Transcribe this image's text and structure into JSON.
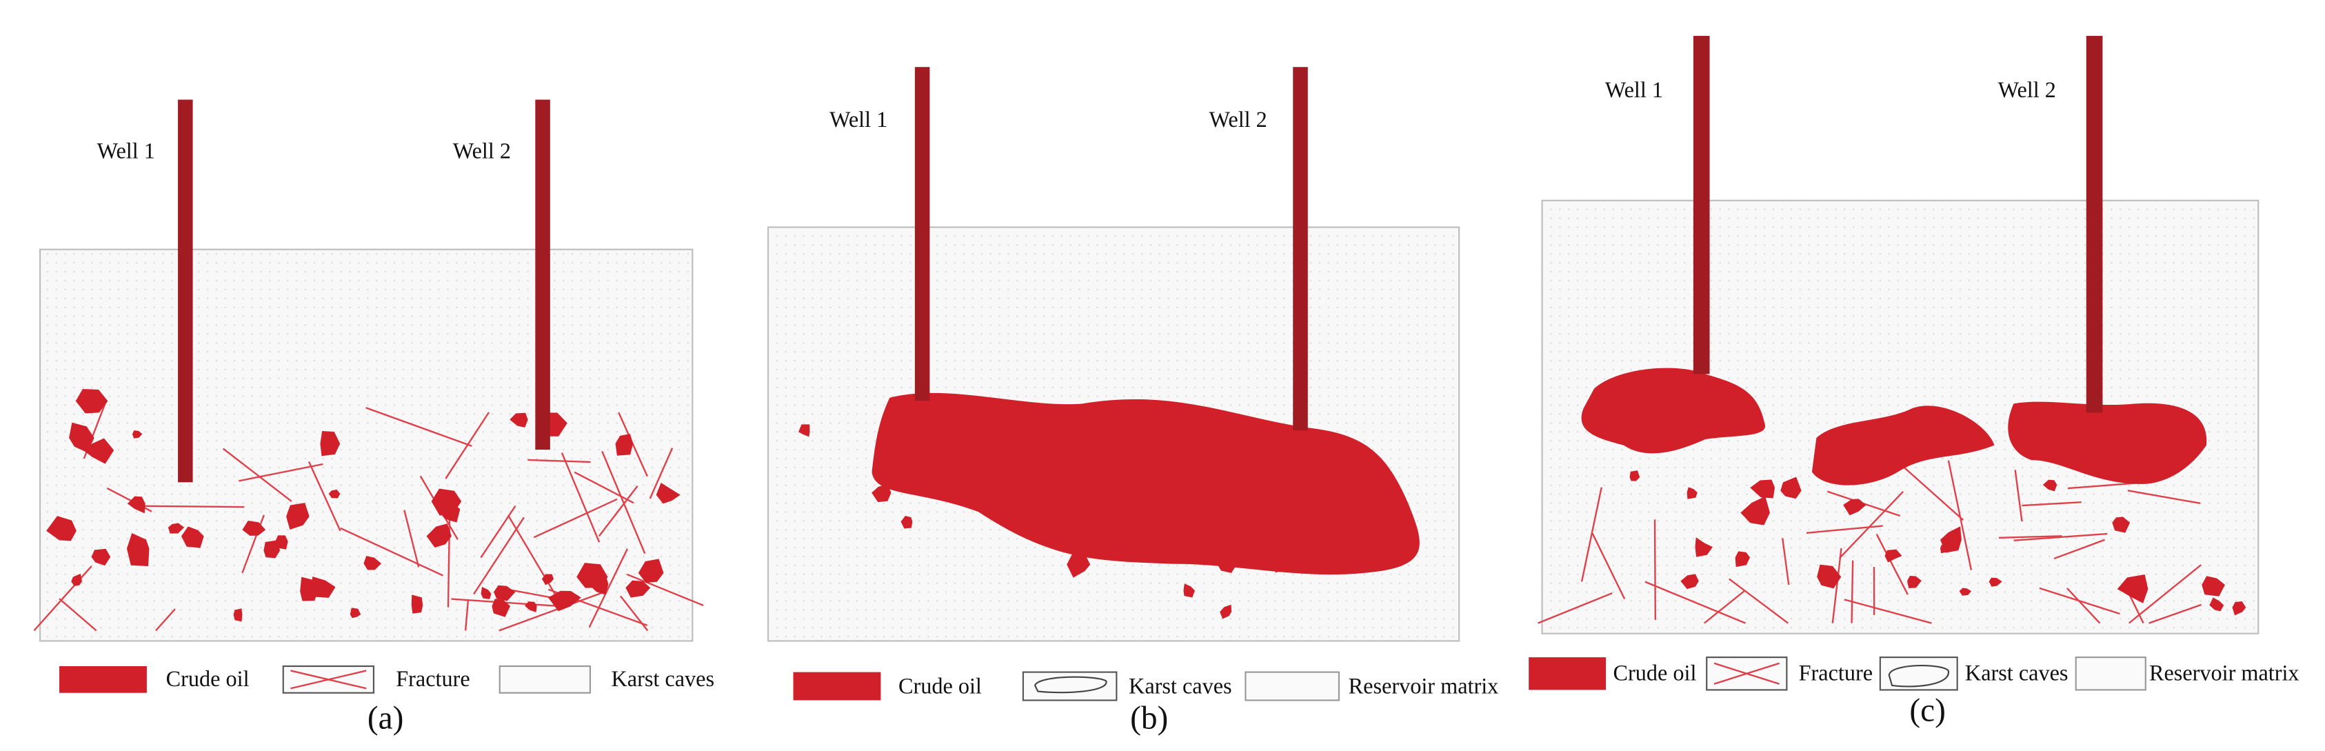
{
  "panels": [
    {
      "wells": [
        "Well 1",
        "Well 2"
      ],
      "legend": [
        "Crude oil",
        "Fracture",
        "Karst caves"
      ],
      "caption": "(a)"
    },
    {
      "wells": [
        "Well 1",
        "Well 2"
      ],
      "legend": [
        "Crude oil",
        "Karst caves",
        "Reservoir matrix"
      ],
      "caption": "(b)"
    },
    {
      "wells": [
        "Well 1",
        "Well 2"
      ],
      "legend": [
        "Crude oil",
        "Fracture",
        "Karst caves",
        "Reservoir matrix"
      ],
      "caption": "(c)"
    }
  ]
}
